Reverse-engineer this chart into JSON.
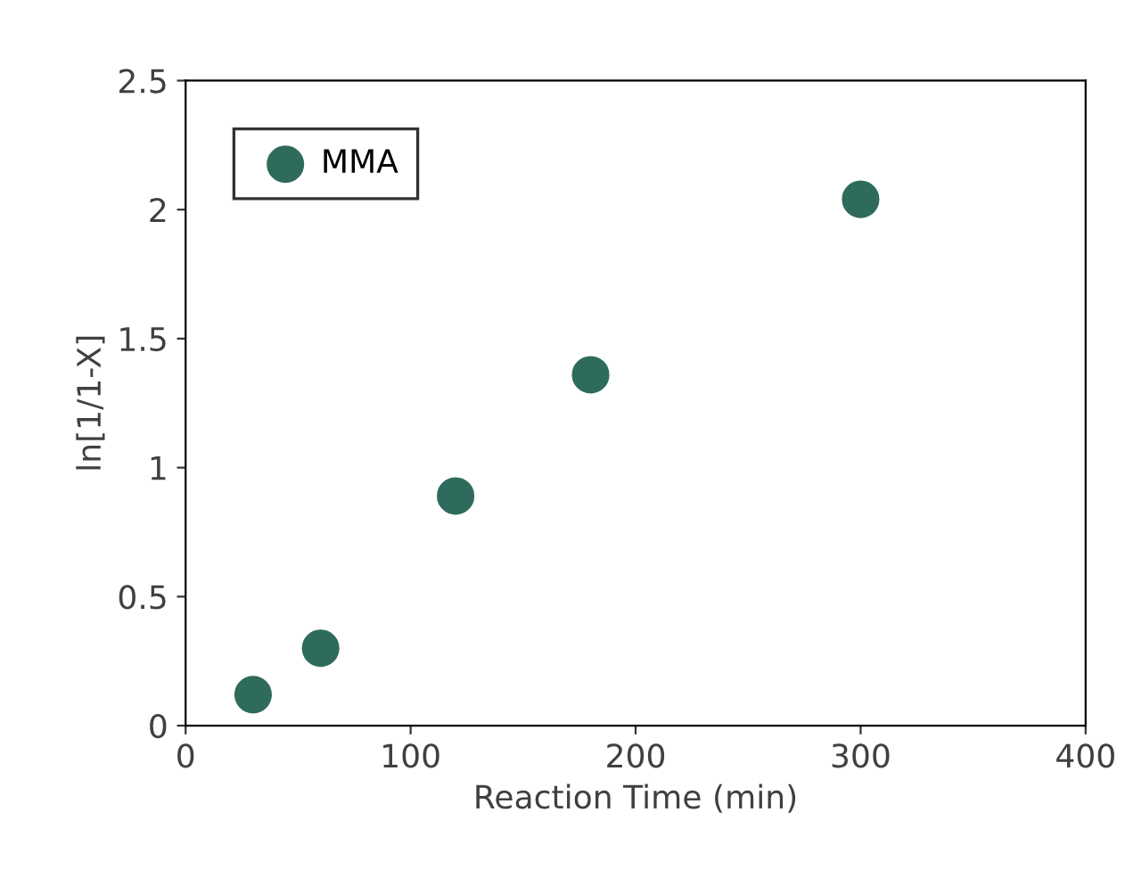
{
  "chart_data": {
    "type": "scatter",
    "xlabel": "Reaction Time (min)",
    "ylabel": "ln[1/1-X]",
    "x": [
      30,
      60,
      120,
      180,
      300
    ],
    "series": [
      {
        "name": "MMA",
        "color": "#2f6b5c",
        "values": [
          0.12,
          0.3,
          0.89,
          1.36,
          2.04
        ]
      }
    ],
    "xlim": [
      0,
      400
    ],
    "xticks": [
      0,
      100,
      200,
      300,
      400
    ],
    "ylim": [
      0,
      2.5
    ],
    "yticks": [
      0,
      0.5,
      1,
      1.5,
      2,
      2.5
    ],
    "grid": false,
    "legend": "top left",
    "marker": "circle"
  }
}
